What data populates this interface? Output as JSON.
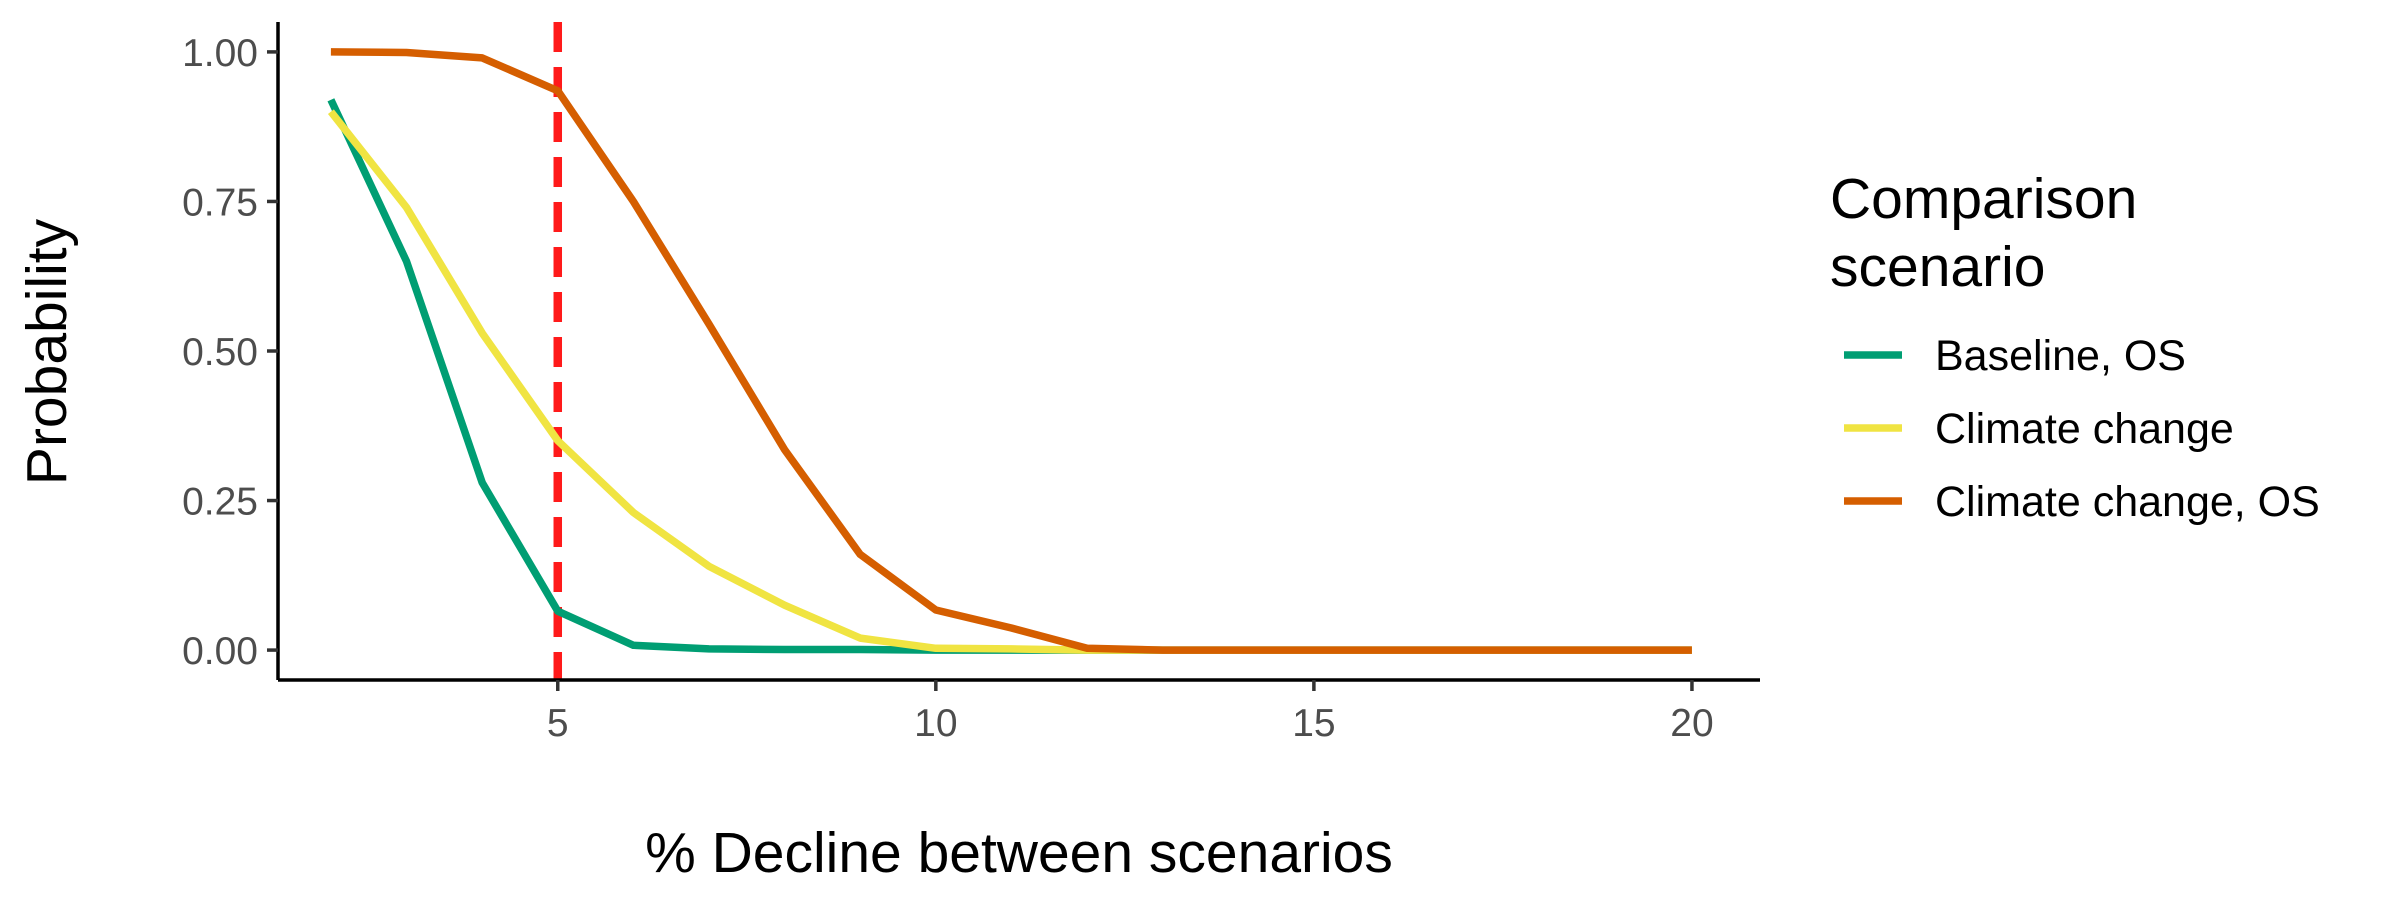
{
  "chart_data": {
    "type": "line",
    "xlabel": "% Decline between scenarios",
    "ylabel": "Probability",
    "xlim": [
      1.3,
      20.9
    ],
    "ylim": [
      -0.05,
      1.05
    ],
    "x_ticks": [
      5,
      10,
      15,
      20
    ],
    "x_tick_labels": [
      "5",
      "10",
      "15",
      "20"
    ],
    "y_ticks": [
      0,
      0.25,
      0.5,
      0.75,
      1
    ],
    "y_tick_labels": [
      "0.00",
      "0.25",
      "0.50",
      "0.75",
      "1.00"
    ],
    "grid": false,
    "legend": {
      "title_lines": [
        "Comparison",
        "scenario"
      ],
      "position": "right"
    },
    "reference_line": {
      "axis": "x",
      "value": 5,
      "style": "dashed",
      "color": "#ff1a1a"
    },
    "x": [
      2,
      3,
      4,
      5,
      6,
      7,
      8,
      9,
      10,
      11,
      12,
      13,
      14,
      15,
      16,
      17,
      18,
      19,
      20
    ],
    "series": [
      {
        "name": "Baseline, OS",
        "color": "#009e73",
        "values": [
          0.92,
          0.65,
          0.28,
          0.065,
          0.008,
          0.002,
          0.001,
          0.001,
          0.0,
          0.0,
          0.0,
          0.0,
          0.0,
          0.0,
          0.0,
          0.0,
          0.0,
          0.0,
          0.0
        ]
      },
      {
        "name": "Climate change",
        "color": "#f0e442",
        "values": [
          0.9,
          0.74,
          0.53,
          0.35,
          0.23,
          0.14,
          0.075,
          0.02,
          0.003,
          0.002,
          0.0,
          0.0,
          0.0,
          0.0,
          0.0,
          0.0,
          0.0,
          0.0,
          0.0
        ]
      },
      {
        "name": "Climate change, OS",
        "color": "#d55e00",
        "values": [
          1.0,
          0.999,
          0.99,
          0.935,
          0.75,
          0.545,
          0.335,
          0.16,
          0.067,
          0.037,
          0.003,
          0.0,
          0.0,
          0.0,
          0.0,
          0.0,
          0.0,
          0.0,
          0.0
        ]
      }
    ]
  }
}
